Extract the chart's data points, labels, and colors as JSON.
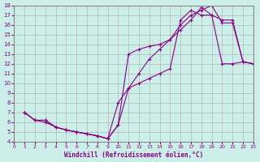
{
  "xlabel": "Windchill (Refroidissement éolien,°C)",
  "background_color": "#cceee8",
  "line_color": "#880088",
  "xlim": [
    0,
    23
  ],
  "ylim": [
    4,
    18
  ],
  "xticks": [
    0,
    1,
    2,
    3,
    4,
    5,
    6,
    7,
    8,
    9,
    10,
    11,
    12,
    13,
    14,
    15,
    16,
    17,
    18,
    19,
    20,
    21,
    22,
    23
  ],
  "yticks": [
    4,
    5,
    6,
    7,
    8,
    9,
    10,
    11,
    12,
    13,
    14,
    15,
    16,
    17,
    18
  ],
  "line1_x": [
    1,
    2,
    3,
    4,
    5,
    6,
    7,
    8,
    9,
    10,
    11,
    12,
    13,
    14,
    15,
    16,
    17,
    18,
    19,
    20,
    21,
    22,
    23
  ],
  "line1_y": [
    7,
    6.2,
    6.2,
    5.5,
    5.2,
    5.0,
    4.8,
    4.6,
    4.3,
    8.0,
    9.5,
    11.0,
    12.5,
    13.5,
    14.5,
    15.5,
    16.5,
    17.8,
    17.0,
    16.5,
    16.5,
    12.2,
    12.0
  ],
  "line2_x": [
    1,
    2,
    3,
    4,
    5,
    6,
    7,
    8,
    9,
    10,
    11,
    12,
    13,
    14,
    15,
    16,
    17,
    18,
    19,
    20,
    21,
    22,
    23
  ],
  "line2_y": [
    7,
    6.2,
    6.2,
    5.5,
    5.2,
    5.0,
    4.8,
    4.6,
    4.3,
    5.7,
    9.5,
    10.0,
    10.5,
    11.0,
    11.5,
    16.5,
    17.5,
    17.0,
    17.0,
    12.0,
    12.0,
    12.2,
    12.0
  ],
  "line3_x": [
    1,
    2,
    3,
    4,
    5,
    6,
    7,
    8,
    9,
    10,
    11,
    12,
    13,
    14,
    15,
    16,
    17,
    18,
    19,
    20,
    21,
    22,
    23
  ],
  "line3_y": [
    7,
    6.2,
    6.0,
    5.5,
    5.2,
    5.0,
    4.8,
    4.6,
    4.3,
    5.7,
    13.0,
    13.5,
    13.8,
    14.0,
    14.5,
    16.0,
    17.0,
    17.5,
    18.0,
    16.2,
    16.2,
    12.2,
    12.0
  ]
}
